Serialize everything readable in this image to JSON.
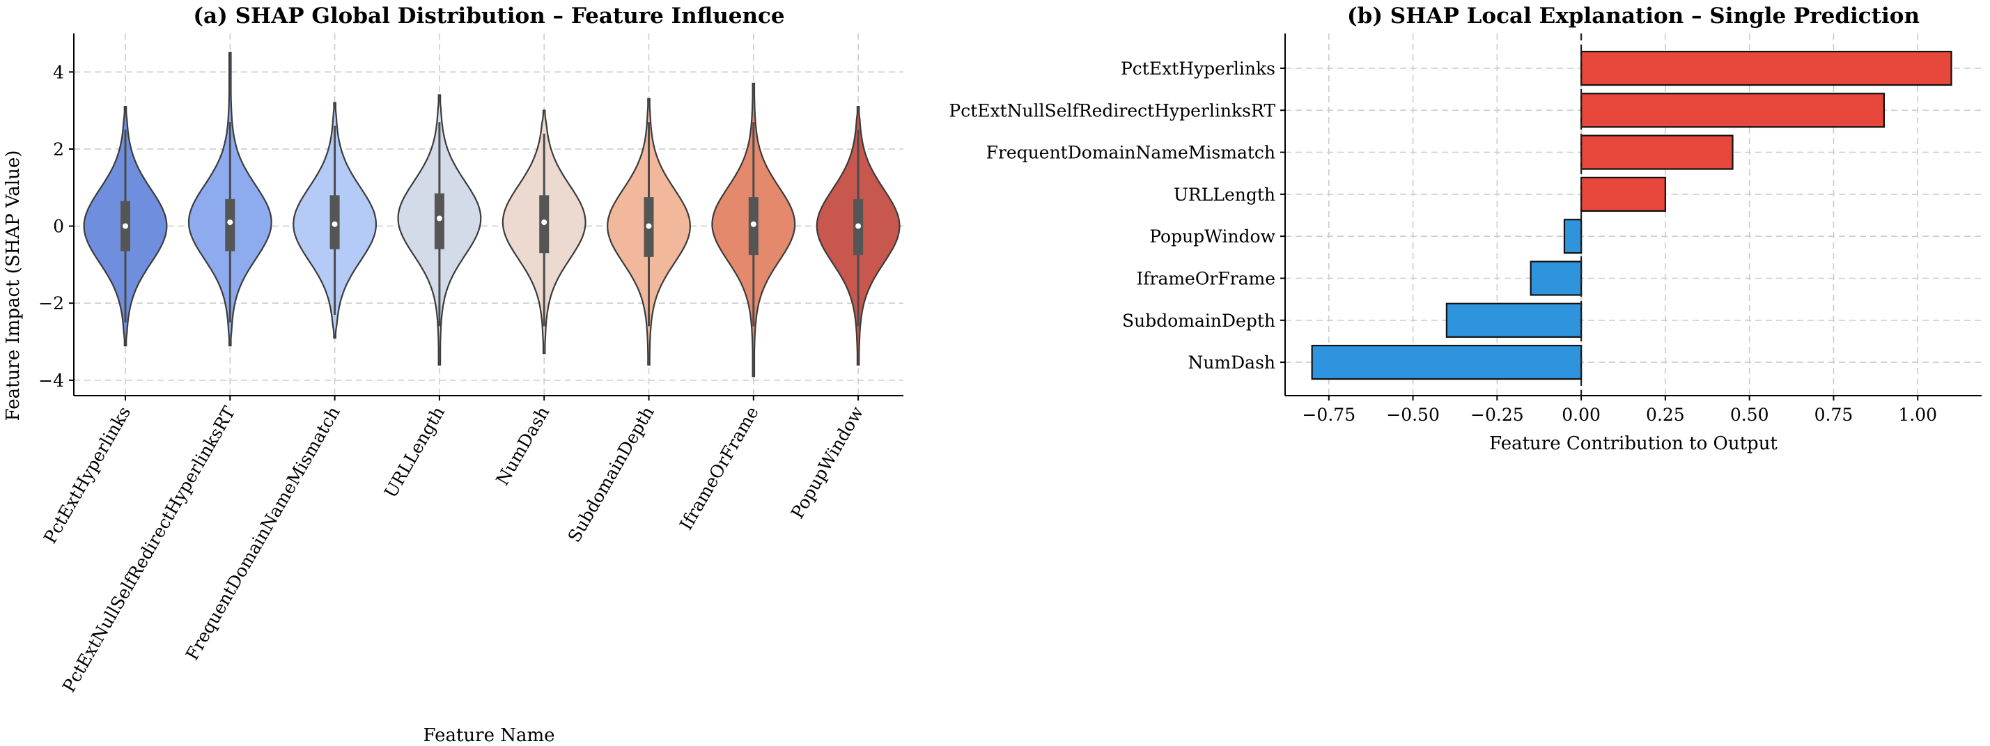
{
  "chart_data": [
    {
      "type": "violin",
      "title": "(a) SHAP Global Distribution – Feature Influence",
      "xlabel": "Feature Name",
      "ylabel": "Feature Impact (SHAP Value)",
      "ylim": [
        -4.4,
        5.0
      ],
      "yticks": [
        -4,
        -2,
        0,
        2,
        4
      ],
      "categories": [
        "PctExtHyperlinks",
        "PctExtNullSelfRedirectHyperlinksRT",
        "FrequentDomainNameMismatch",
        "URLLength",
        "NumDash",
        "SubdomainDepth",
        "IframeOrFrame",
        "PopupWindow"
      ],
      "colors": [
        "#6f8ede",
        "#8fabef",
        "#b5cbf7",
        "#d4dbe8",
        "#ecd9cf",
        "#f2b89c",
        "#e5896d",
        "#c8574d"
      ],
      "min": [
        -3.1,
        -3.1,
        -2.9,
        -3.6,
        -3.3,
        -3.6,
        -3.9,
        -3.6
      ],
      "q1": [
        -0.65,
        -0.65,
        -0.6,
        -0.6,
        -0.7,
        -0.8,
        -0.75,
        -0.75
      ],
      "median": [
        0.0,
        0.1,
        0.05,
        0.2,
        0.1,
        0.0,
        0.05,
        0.0
      ],
      "q3": [
        0.65,
        0.7,
        0.8,
        0.85,
        0.8,
        0.75,
        0.75,
        0.7
      ],
      "max": [
        3.1,
        4.5,
        3.2,
        3.4,
        3.0,
        3.3,
        3.7,
        3.1
      ],
      "grid": true
    },
    {
      "type": "bar-horizontal",
      "title": "(b) SHAP Local Explanation – Single Prediction",
      "xlabel": "Feature Contribution to Output",
      "ylabel": "",
      "xlim": [
        -0.88,
        1.19
      ],
      "xticks": [
        -0.75,
        -0.5,
        -0.25,
        0.0,
        0.25,
        0.5,
        0.75,
        1.0
      ],
      "xtick_labels": [
        "−0.75",
        "−0.50",
        "−0.25",
        "0.00",
        "0.25",
        "0.50",
        "0.75",
        "1.00"
      ],
      "categories": [
        "PctExtHyperlinks",
        "PctExtNullSelfRedirectHyperlinksRT",
        "FrequentDomainNameMismatch",
        "URLLength",
        "PopupWindow",
        "IframeOrFrame",
        "SubdomainDepth",
        "NumDash"
      ],
      "values": [
        1.1,
        0.9,
        0.45,
        0.25,
        -0.05,
        -0.15,
        -0.4,
        -0.8
      ],
      "positive_color": "#e8473b",
      "negative_color": "#2f94de",
      "grid": true
    }
  ]
}
